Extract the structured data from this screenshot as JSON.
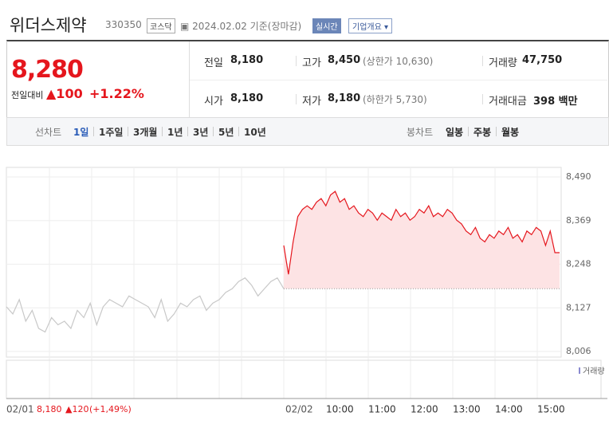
{
  "header": {
    "name": "위더스제약",
    "code": "330350",
    "market": "코스닥",
    "date": "2024.02.02 기준(장마감)",
    "realtime": "실시간",
    "company": "기업개요"
  },
  "quote": {
    "price": "8,280",
    "change_label": "전일대비",
    "change": "▲100",
    "change_pct": "+1.22%",
    "items": [
      {
        "label": "전일",
        "value": "8,180"
      },
      {
        "label": "고가",
        "value": "8,450",
        "sub": "(상한가 10,630)"
      },
      {
        "label": "거래량",
        "value": "47,750"
      },
      {
        "label": "시가",
        "value": "8,180"
      },
      {
        "label": "저가",
        "value": "8,180",
        "sub": "(하한가 5,730)"
      },
      {
        "label": "거래대금",
        "value": "398 백만"
      }
    ]
  },
  "tabs": {
    "line_label": "선차트",
    "line": [
      "1일",
      "1주일",
      "3개월",
      "1년",
      "3년",
      "5년",
      "10년"
    ],
    "active": 0,
    "candle_label": "봉차트",
    "candle": [
      "일봉",
      "주봉",
      "월봉"
    ]
  },
  "chart_data": {
    "type": "line",
    "volume_label": "거래량",
    "ylim": [
      8006,
      8490
    ],
    "yticks": [
      {
        "value": 8490,
        "label": "8,490"
      },
      {
        "value": 8369,
        "label": "8,369"
      },
      {
        "value": 8248,
        "label": "8,248"
      },
      {
        "value": 8127,
        "label": "8,127"
      },
      {
        "value": 8006,
        "label": "8,006"
      }
    ],
    "xtick_labels": [
      "02/01",
      "02/02",
      "10:00",
      "11:00",
      "12:00",
      "13:00",
      "14:00",
      "15:00"
    ],
    "prev_close": {
      "value": 8180,
      "label": "8,180"
    },
    "prev_change": "▲120",
    "prev_change_pct": "(+1,49%)",
    "series": [
      {
        "color": "#c8c8c8",
        "values": [
          8130,
          8110,
          8150,
          8090,
          8120,
          8070,
          8060,
          8100,
          8080,
          8090,
          8070,
          8120,
          8100,
          8140,
          8080,
          8130,
          8150,
          8140,
          8130,
          8160,
          8150,
          8140,
          8130,
          8100,
          8150,
          8090,
          8110,
          8140,
          8130,
          8150,
          8160,
          8120,
          8140,
          8150,
          8170,
          8180,
          8200,
          8210,
          8190,
          8160,
          8180,
          8200,
          8210,
          8180
        ]
      },
      {
        "color": "#e5161d",
        "fill": "#fde3e4",
        "values": [
          8300,
          8220,
          8310,
          8380,
          8400,
          8410,
          8400,
          8420,
          8430,
          8410,
          8440,
          8450,
          8420,
          8430,
          8400,
          8410,
          8390,
          8380,
          8400,
          8390,
          8370,
          8390,
          8380,
          8370,
          8400,
          8380,
          8390,
          8370,
          8380,
          8400,
          8390,
          8410,
          8380,
          8390,
          8380,
          8400,
          8390,
          8370,
          8360,
          8340,
          8330,
          8350,
          8320,
          8310,
          8330,
          8320,
          8340,
          8330,
          8350,
          8320,
          8330,
          8310,
          8340,
          8330,
          8350,
          8340,
          8300,
          8340,
          8280,
          8280
        ]
      }
    ]
  }
}
